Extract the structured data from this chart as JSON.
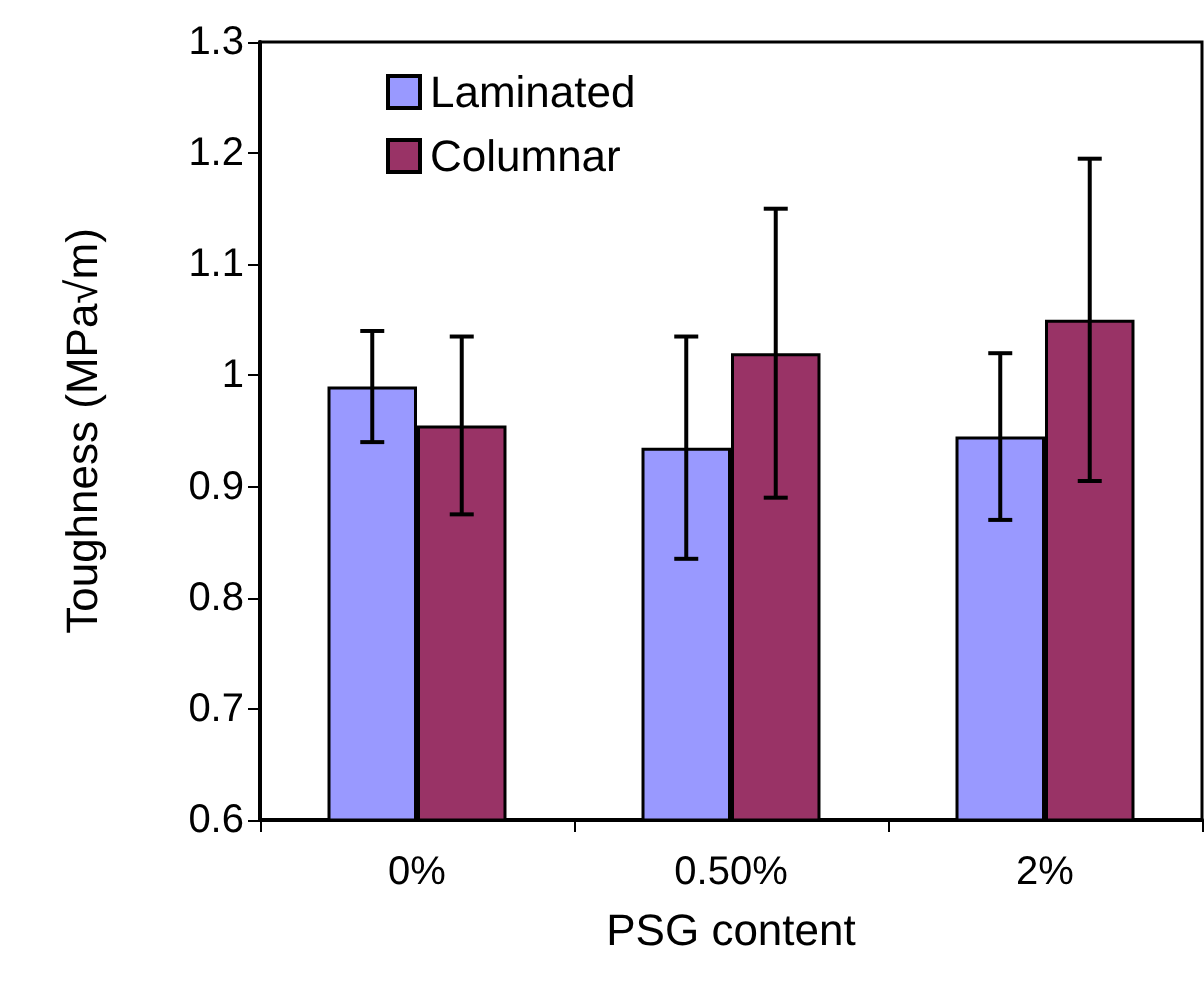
{
  "chart_data": {
    "type": "bar",
    "xlabel": "PSG content",
    "ylabel": "Toughness (MPa√m)",
    "categories": [
      "0%",
      "0.50%",
      "2%"
    ],
    "series": [
      {
        "name": "Laminated",
        "color": "#9999ff",
        "values": [
          0.99,
          0.935,
          0.945
        ],
        "errors": [
          0.05,
          0.1,
          0.075
        ]
      },
      {
        "name": "Columnar",
        "color": "#993366",
        "values": [
          0.955,
          1.02,
          1.05
        ],
        "errors": [
          0.08,
          0.13,
          0.145
        ]
      }
    ],
    "ylim": [
      0.6,
      1.3
    ],
    "yticks": [
      0.6,
      0.7,
      0.8,
      0.9,
      1,
      1.1,
      1.2,
      1.3
    ],
    "grid": false,
    "legend": "top left"
  }
}
